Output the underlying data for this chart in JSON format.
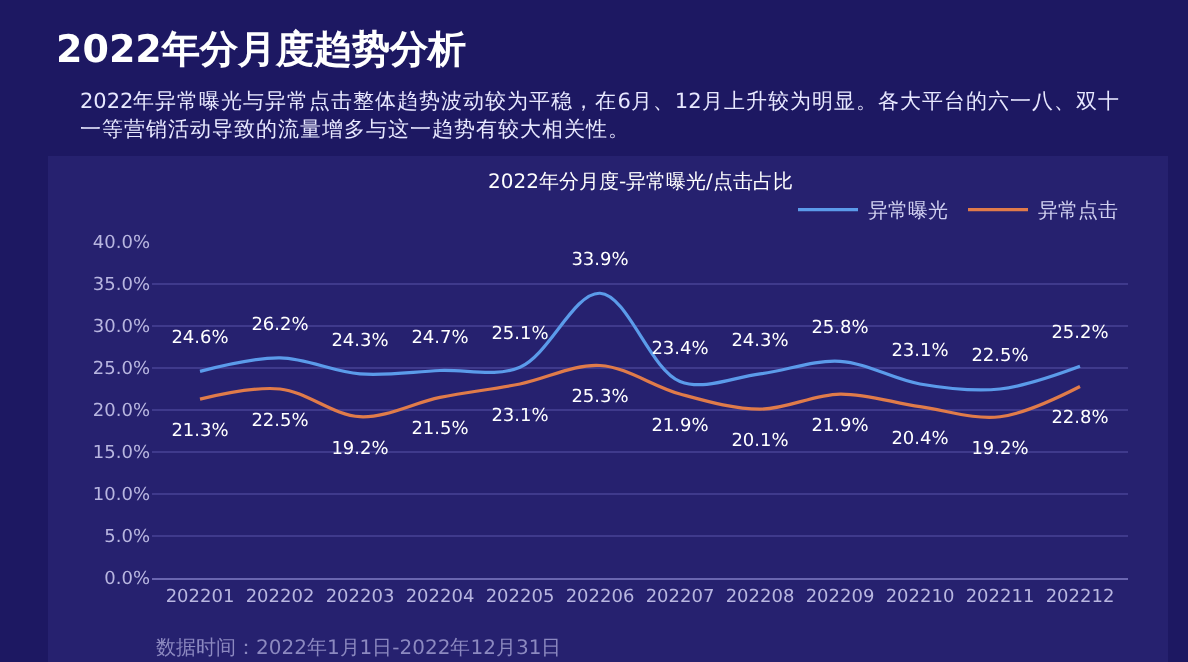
{
  "chart_data": {
    "type": "line",
    "title": "2022年分月度趋势分析",
    "subtitle": "2022年异常曝光与异常点击整体趋势波动较为平稳，在6月、12月上升较为明显。各大平台的六一八、双十一等营销活动导致的流量增多与这一趋势有较大相关性。",
    "annotations": [
      "2022年分月度-异常曝光/点击占比",
      "数据时间：2022年1月1日-2022年12月31日"
    ],
    "categories": [
      "202201",
      "202202",
      "202203",
      "202204",
      "202205",
      "202206",
      "202207",
      "202208",
      "202209",
      "202210",
      "202211",
      "202212"
    ],
    "series": [
      {
        "name": "异常曝光",
        "color": "#5b9bea",
        "values": [
          24.6,
          26.2,
          24.3,
          24.7,
          25.1,
          33.9,
          23.4,
          24.3,
          25.8,
          23.1,
          22.5,
          25.2
        ],
        "value_labels": [
          "24.6%",
          "26.2%",
          "24.3%",
          "24.7%",
          "25.1%",
          "33.9%",
          "23.4%",
          "24.3%",
          "25.8%",
          "23.1%",
          "22.5%",
          "25.2%"
        ]
      },
      {
        "name": "异常点击",
        "color": "#e07b4a",
        "values": [
          21.3,
          22.5,
          19.2,
          21.5,
          23.1,
          25.3,
          21.9,
          20.1,
          21.9,
          20.4,
          19.2,
          22.8
        ],
        "value_labels": [
          "21.3%",
          "22.5%",
          "19.2%",
          "21.5%",
          "23.1%",
          "25.3%",
          "21.9%",
          "20.1%",
          "21.9%",
          "20.4%",
          "19.2%",
          "22.8%"
        ]
      }
    ],
    "ylim": [
      0,
      40
    ],
    "yticks": [
      {
        "value": 0,
        "label": "0.0%"
      },
      {
        "value": 5,
        "label": "5.0%"
      },
      {
        "value": 10,
        "label": "10.0%"
      },
      {
        "value": 15,
        "label": "15.0%"
      },
      {
        "value": 20,
        "label": "20.0%"
      },
      {
        "value": 25,
        "label": "25.0%"
      },
      {
        "value": 30,
        "label": "30.0%"
      },
      {
        "value": 35,
        "label": "35.0%"
      },
      {
        "value": 40,
        "label": "40.0%"
      }
    ],
    "grid": "y",
    "legend": "top right",
    "marker": "none",
    "line_style": "solid"
  }
}
